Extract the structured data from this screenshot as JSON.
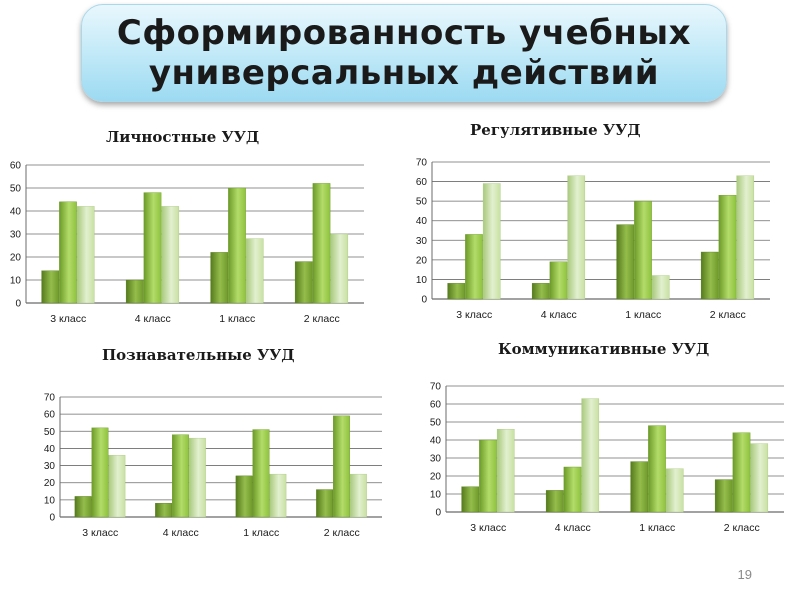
{
  "slide": {
    "title": "Сформированность учебных\nуниверсальных действий",
    "page_number": "19"
  },
  "chart_data": [
    {
      "type": "bar",
      "title": "Личностные УУД",
      "categories": [
        "3 класс",
        "4 класс",
        "1 класс",
        "2 класс"
      ],
      "series": [
        {
          "values": [
            14,
            10,
            22,
            18
          ]
        },
        {
          "values": [
            44,
            48,
            50,
            52
          ]
        },
        {
          "values": [
            42,
            42,
            28,
            30
          ]
        }
      ],
      "ylim": [
        0,
        60
      ],
      "yticks": [
        0,
        10,
        20,
        30,
        40,
        50,
        60
      ],
      "grid": true,
      "legend": "none"
    },
    {
      "type": "bar",
      "title": "Регулятивные УУД",
      "categories": [
        "3 класс",
        "4 класс",
        "1 класс",
        "2 класс"
      ],
      "series": [
        {
          "values": [
            8,
            8,
            38,
            24
          ]
        },
        {
          "values": [
            33,
            19,
            50,
            53
          ]
        },
        {
          "values": [
            59,
            63,
            12,
            63
          ]
        }
      ],
      "ylim": [
        0,
        70
      ],
      "yticks": [
        0,
        10,
        20,
        30,
        40,
        50,
        60,
        70
      ],
      "grid": true,
      "legend": "none"
    },
    {
      "type": "bar",
      "title": "Познавательные УУД",
      "categories": [
        "3 класс",
        "4 класс",
        "1 класс",
        "2 класс"
      ],
      "series": [
        {
          "values": [
            12,
            8,
            24,
            16
          ]
        },
        {
          "values": [
            52,
            48,
            51,
            59
          ]
        },
        {
          "values": [
            36,
            46,
            25,
            25
          ]
        }
      ],
      "ylim": [
        0,
        70
      ],
      "yticks": [
        0,
        10,
        20,
        30,
        40,
        50,
        60,
        70
      ],
      "grid": true,
      "legend": "none"
    },
    {
      "type": "bar",
      "title": "Коммуникативные УУД",
      "categories": [
        "3 класс",
        "4 класс",
        "1 класс",
        "2 класс"
      ],
      "series": [
        {
          "values": [
            14,
            12,
            28,
            18
          ]
        },
        {
          "values": [
            40,
            25,
            48,
            44
          ]
        },
        {
          "values": [
            46,
            63,
            24,
            38
          ]
        }
      ],
      "ylim": [
        0,
        70
      ],
      "yticks": [
        0,
        10,
        20,
        30,
        40,
        50,
        60,
        70
      ],
      "grid": true,
      "legend": "none"
    }
  ],
  "colors": {
    "series": [
      "#6f9a2a",
      "#8fc23e",
      "#c8e0a2"
    ],
    "series_light": [
      "#94bd4c",
      "#b3dc6a",
      "#e2f0cf"
    ],
    "series_dark": [
      "#557a1c",
      "#6c9a28",
      "#a9c97e"
    ],
    "grid": "#6b6b6b",
    "text": "#1a1a1a"
  }
}
